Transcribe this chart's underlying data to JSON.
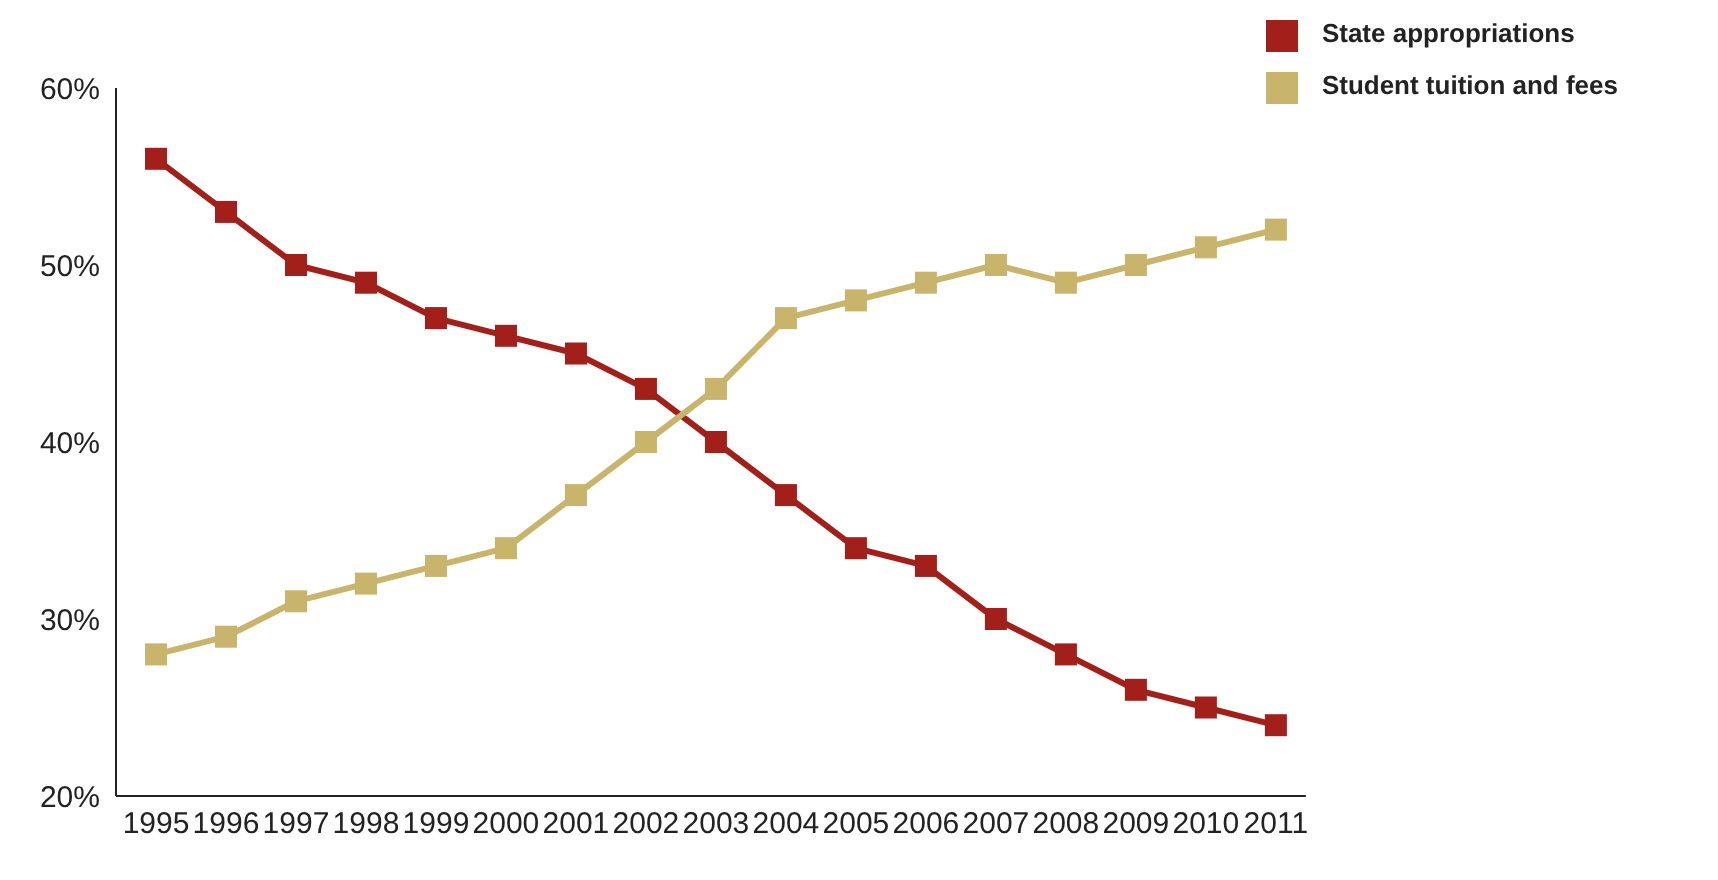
{
  "chart_data": {
    "type": "line",
    "categories": [
      "1995",
      "1996",
      "1997",
      "1998",
      "1999",
      "2000",
      "2001",
      "2002",
      "2003",
      "2004",
      "2005",
      "2006",
      "2007",
      "2008",
      "2009",
      "2010",
      "2011"
    ],
    "series": [
      {
        "name": "State appropriations",
        "color": "#a31f1a",
        "values": [
          56,
          53,
          50,
          49,
          47,
          46,
          45,
          43,
          40,
          37,
          34,
          33,
          30,
          28,
          26,
          25,
          24
        ]
      },
      {
        "name": "Student tuition and fees",
        "color": "#c8b46a",
        "values": [
          28,
          29,
          31,
          32,
          33,
          34,
          37,
          40,
          43,
          47,
          48,
          49,
          50,
          49,
          50,
          51,
          52
        ]
      }
    ],
    "ylim": [
      20,
      60
    ],
    "yticks": [
      {
        "value": 20,
        "label": "20%"
      },
      {
        "value": 30,
        "label": "30%"
      },
      {
        "value": 40,
        "label": "40%"
      },
      {
        "value": 50,
        "label": "50%"
      },
      {
        "value": 60,
        "label": "60%"
      }
    ],
    "grid": false,
    "legend": "top right",
    "marker": "square",
    "line_style": "solid"
  }
}
